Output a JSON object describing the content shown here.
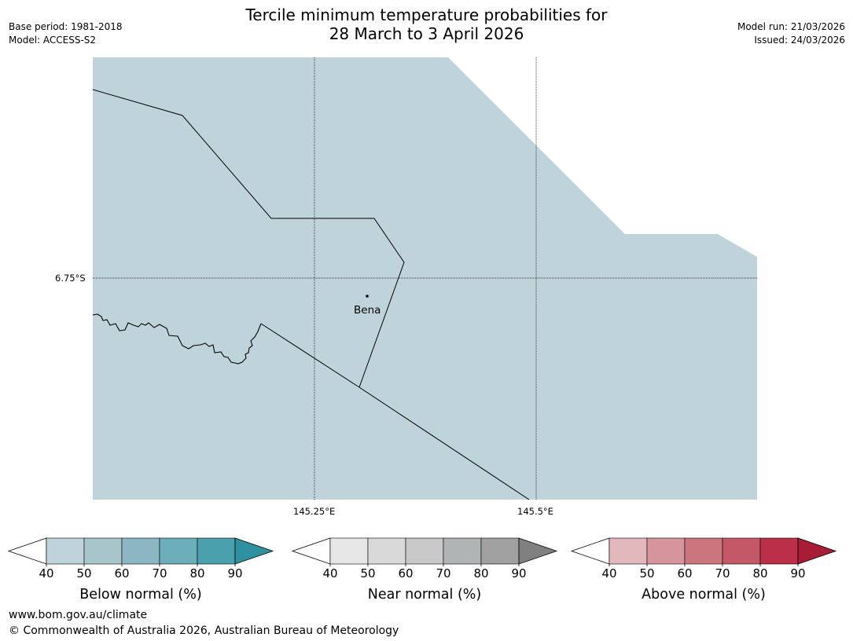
{
  "title": {
    "line1": "Tercile minimum temperature probabilities for",
    "line2": "28 March to 3 April 2026"
  },
  "meta_left": {
    "base_period": "Base period: 1981-2018",
    "model": "Model: ACCESS-S2"
  },
  "meta_right": {
    "model_run": "Model run: 21/03/2026",
    "issued": "Issued: 24/03/2026"
  },
  "map": {
    "lat_label": "6.75°S",
    "lon_labels": [
      "145.25°E",
      "145.5°E"
    ],
    "place": "Bena",
    "fill_color": "#bfd4da",
    "fill_meaning": "Below normal 40-50%"
  },
  "legends": [
    {
      "label": "Below normal (%)",
      "ticks": [
        "40",
        "50",
        "60",
        "70",
        "80",
        "90"
      ],
      "colors": [
        "#bfd4da",
        "#a8c5cc",
        "#8ab7c2",
        "#6baeba",
        "#4aa0ad",
        "#2e91a0"
      ]
    },
    {
      "label": "Near normal (%)",
      "ticks": [
        "40",
        "50",
        "60",
        "70",
        "80",
        "90"
      ],
      "colors": [
        "#e6e6e6",
        "#d9d9d9",
        "#c8c8c8",
        "#b0b4b4",
        "#a0a0a0",
        "#808080"
      ]
    },
    {
      "label": "Above normal (%)",
      "ticks": [
        "40",
        "50",
        "60",
        "70",
        "80",
        "90"
      ],
      "colors": [
        "#e2b8bd",
        "#d6959c",
        "#cb757e",
        "#c35867",
        "#bb2f48",
        "#a81c36"
      ]
    }
  ],
  "footer": {
    "url": "www.bom.gov.au/climate",
    "copyright": "© Commonwealth of Australia 2026, Australian Bureau of Meteorology"
  }
}
